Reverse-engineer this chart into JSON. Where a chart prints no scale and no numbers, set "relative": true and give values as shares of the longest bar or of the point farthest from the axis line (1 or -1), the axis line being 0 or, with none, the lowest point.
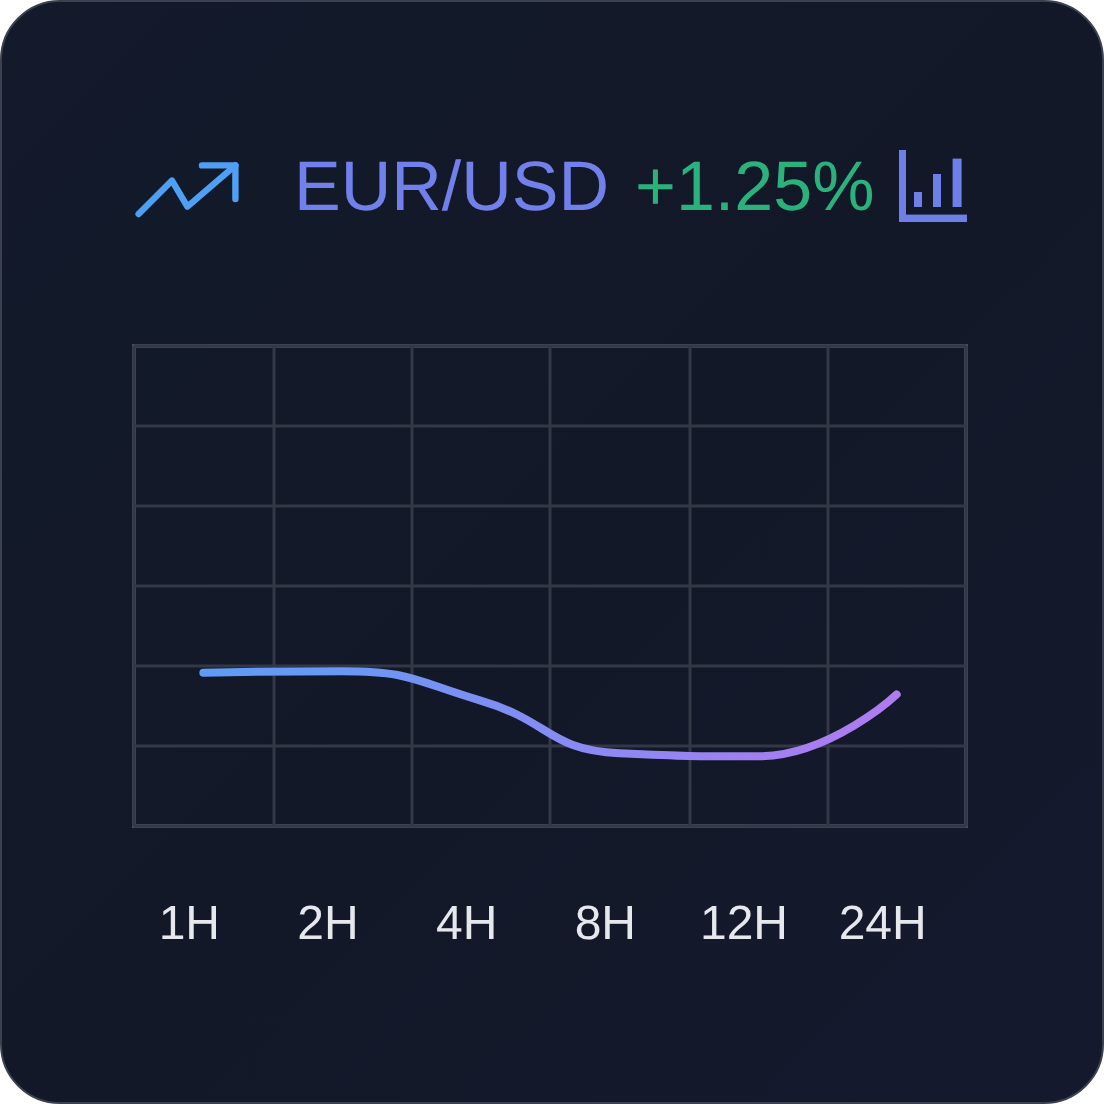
{
  "chart_data": {
    "type": "line",
    "title": "EUR/USD",
    "subtitle": "+1.25%",
    "categories": [
      "1H",
      "2H",
      "4H",
      "8H",
      "12H",
      "24H"
    ],
    "values": [
      0.99,
      1,
      0.81,
      0.47,
      0.45,
      0.85
    ],
    "colors": [
      "#5f9cf6",
      "#6898f5",
      "#7c8ff3",
      "#8e88f2",
      "#a080f0",
      "#b07cf0"
    ],
    "relative": true,
    "grid": true,
    "marker": "none",
    "tick_labels": "x"
  }
}
